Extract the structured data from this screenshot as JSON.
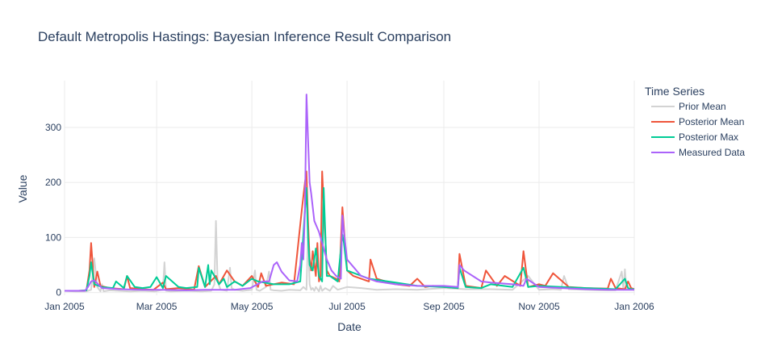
{
  "chart_data": {
    "type": "line",
    "title": "Default Metropolis Hastings: Bayesian Inference Result Comparison",
    "xlabel": "Date",
    "ylabel": "Value",
    "xlim": [
      "2005-01-01",
      "2006-01-01"
    ],
    "ylim": [
      -5,
      385
    ],
    "x_ticks": [
      "2005-01-01",
      "2005-03-01",
      "2005-05-01",
      "2005-07-01",
      "2005-09-01",
      "2005-11-01",
      "2006-01-01"
    ],
    "x_tick_labels": [
      "Jan 2005",
      "Mar 2005",
      "May 2005",
      "Jul 2005",
      "Sep 2005",
      "Nov 2005",
      "Jan 2006"
    ],
    "y_ticks": [
      0,
      100,
      200,
      300
    ],
    "y_tick_labels": [
      "0",
      "100",
      "200",
      "300"
    ],
    "grid": true,
    "legend": {
      "title": "Time Series",
      "placement": "right"
    },
    "series": [
      {
        "name": "Prior Mean",
        "color": "#d3d3d3",
        "x": [
          "2005-01-01",
          "2005-01-08",
          "2005-01-15",
          "2005-01-18",
          "2005-01-20",
          "2005-01-22",
          "2005-01-24",
          "2005-01-25",
          "2005-01-26",
          "2005-01-30",
          "2005-02-05",
          "2005-02-12",
          "2005-02-20",
          "2005-02-28",
          "2005-03-05",
          "2005-03-06",
          "2005-03-07",
          "2005-03-10",
          "2005-03-20",
          "2005-03-30",
          "2005-04-05",
          "2005-04-07",
          "2005-04-08",
          "2005-04-09",
          "2005-04-11",
          "2005-04-15",
          "2005-04-17",
          "2005-04-18",
          "2005-04-20",
          "2005-04-25",
          "2005-05-01",
          "2005-05-03",
          "2005-05-04",
          "2005-05-06",
          "2005-05-10",
          "2005-05-12",
          "2005-05-13",
          "2005-05-15",
          "2005-05-20",
          "2005-05-25",
          "2005-06-01",
          "2005-06-03",
          "2005-06-05",
          "2005-06-06",
          "2005-06-07",
          "2005-06-08",
          "2005-06-09",
          "2005-06-10",
          "2005-06-11",
          "2005-06-13",
          "2005-06-14",
          "2005-06-15",
          "2005-06-17",
          "2005-06-20",
          "2005-06-22",
          "2005-06-25",
          "2005-07-01",
          "2005-07-10",
          "2005-07-20",
          "2005-08-01",
          "2005-08-15",
          "2005-09-01",
          "2005-09-15",
          "2005-10-01",
          "2005-10-15",
          "2005-10-25",
          "2005-11-01",
          "2005-11-10",
          "2005-11-15",
          "2005-11-17",
          "2005-11-20",
          "2005-12-01",
          "2005-12-10",
          "2005-12-20",
          "2005-12-24",
          "2005-12-25",
          "2005-12-26",
          "2005-12-27",
          "2006-01-01"
        ],
        "y": [
          3,
          2,
          2,
          5,
          62,
          10,
          2,
          15,
          2,
          4,
          3,
          2,
          3,
          2,
          5,
          55,
          3,
          2,
          3,
          2,
          3,
          15,
          130,
          20,
          5,
          3,
          45,
          8,
          5,
          3,
          5,
          40,
          5,
          3,
          10,
          38,
          5,
          4,
          3,
          5,
          4,
          10,
          5,
          110,
          15,
          5,
          8,
          3,
          10,
          2,
          12,
          3,
          8,
          3,
          12,
          5,
          10,
          8,
          5,
          6,
          5,
          8,
          6,
          6,
          5,
          30,
          5,
          6,
          5,
          30,
          6,
          5,
          4,
          4,
          38,
          5,
          42,
          6,
          5
        ]
      },
      {
        "name": "Posterior Mean",
        "color": "#ef553b",
        "x": [
          "2005-01-01",
          "2005-01-10",
          "2005-01-15",
          "2005-01-17",
          "2005-01-18",
          "2005-01-20",
          "2005-01-22",
          "2005-01-24",
          "2005-01-30",
          "2005-02-08",
          "2005-02-10",
          "2005-02-12",
          "2005-02-20",
          "2005-02-27",
          "2005-03-05",
          "2005-03-07",
          "2005-03-15",
          "2005-03-25",
          "2005-03-28",
          "2005-04-01",
          "2005-04-08",
          "2005-04-10",
          "2005-04-15",
          "2005-04-20",
          "2005-04-25",
          "2005-05-01",
          "2005-05-05",
          "2005-05-07",
          "2005-05-10",
          "2005-05-20",
          "2005-05-28",
          "2005-06-02",
          "2005-06-04",
          "2005-06-05",
          "2005-06-06",
          "2005-06-07",
          "2005-06-08",
          "2005-06-09",
          "2005-06-11",
          "2005-06-12",
          "2005-06-13",
          "2005-06-14",
          "2005-06-15",
          "2005-06-18",
          "2005-06-20",
          "2005-06-24",
          "2005-06-26",
          "2005-06-28",
          "2005-07-01",
          "2005-07-05",
          "2005-07-15",
          "2005-07-16",
          "2005-07-20",
          "2005-08-01",
          "2005-08-10",
          "2005-08-15",
          "2005-08-20",
          "2005-08-25",
          "2005-09-01",
          "2005-09-10",
          "2005-09-11",
          "2005-09-15",
          "2005-09-25",
          "2005-09-28",
          "2005-10-05",
          "2005-10-10",
          "2005-10-20",
          "2005-10-22",
          "2005-10-25",
          "2005-11-01",
          "2005-11-05",
          "2005-11-10",
          "2005-11-20",
          "2005-12-01",
          "2005-12-15",
          "2005-12-17",
          "2005-12-20",
          "2005-12-26",
          "2005-12-28",
          "2005-12-30",
          "2006-01-01"
        ],
        "y": [
          3,
          3,
          4,
          40,
          90,
          10,
          38,
          12,
          8,
          6,
          30,
          8,
          6,
          5,
          18,
          6,
          8,
          5,
          48,
          10,
          30,
          15,
          40,
          20,
          12,
          30,
          10,
          35,
          12,
          18,
          15,
          150,
          200,
          220,
          130,
          60,
          40,
          75,
          30,
          90,
          20,
          30,
          220,
          40,
          30,
          25,
          20,
          155,
          40,
          30,
          20,
          60,
          25,
          15,
          12,
          25,
          10,
          12,
          10,
          8,
          70,
          12,
          8,
          40,
          12,
          30,
          12,
          75,
          10,
          15,
          12,
          35,
          10,
          8,
          7,
          25,
          8,
          6,
          20,
          8,
          6
        ]
      },
      {
        "name": "Posterior Max",
        "color": "#00cc96",
        "x": [
          "2005-01-01",
          "2005-01-10",
          "2005-01-15",
          "2005-01-17",
          "2005-01-18",
          "2005-01-20",
          "2005-01-25",
          "2005-02-01",
          "2005-02-03",
          "2005-02-08",
          "2005-02-10",
          "2005-02-15",
          "2005-02-20",
          "2005-02-25",
          "2005-03-01",
          "2005-03-05",
          "2005-03-07",
          "2005-03-15",
          "2005-03-20",
          "2005-03-27",
          "2005-03-28",
          "2005-04-01",
          "2005-04-03",
          "2005-04-04",
          "2005-04-05",
          "2005-04-10",
          "2005-04-13",
          "2005-04-15",
          "2005-04-20",
          "2005-04-25",
          "2005-05-01",
          "2005-05-05",
          "2005-05-15",
          "2005-05-25",
          "2005-06-01",
          "2005-06-04",
          "2005-06-05",
          "2005-06-06",
          "2005-06-07",
          "2005-06-09",
          "2005-06-11",
          "2005-06-13",
          "2005-06-15",
          "2005-06-16",
          "2005-06-18",
          "2005-06-20",
          "2005-06-25",
          "2005-06-28",
          "2005-06-29",
          "2005-07-01",
          "2005-07-15",
          "2005-08-01",
          "2005-08-15",
          "2005-09-01",
          "2005-09-10",
          "2005-09-11",
          "2005-09-15",
          "2005-09-25",
          "2005-10-01",
          "2005-10-15",
          "2005-10-22",
          "2005-10-25",
          "2005-11-01",
          "2005-11-15",
          "2005-12-01",
          "2005-12-20",
          "2005-12-26",
          "2005-12-28",
          "2005-12-30",
          "2006-01-01"
        ],
        "y": [
          3,
          3,
          4,
          30,
          55,
          15,
          10,
          8,
          20,
          8,
          30,
          10,
          8,
          10,
          28,
          8,
          30,
          10,
          8,
          10,
          45,
          10,
          50,
          15,
          40,
          15,
          25,
          10,
          20,
          12,
          25,
          20,
          15,
          15,
          20,
          150,
          190,
          100,
          50,
          40,
          80,
          30,
          20,
          190,
          30,
          30,
          20,
          105,
          90,
          40,
          25,
          18,
          12,
          10,
          8,
          45,
          10,
          8,
          15,
          10,
          45,
          10,
          12,
          10,
          8,
          6,
          25,
          8,
          6,
          6
        ]
      },
      {
        "name": "Measured Data",
        "color": "#ab63fa",
        "x": [
          "2005-01-01",
          "2005-01-14",
          "2005-01-16",
          "2005-01-18",
          "2005-01-20",
          "2005-01-25",
          "2005-02-05",
          "2005-02-20",
          "2005-03-05",
          "2005-03-20",
          "2005-04-01",
          "2005-04-10",
          "2005-04-20",
          "2005-04-30",
          "2005-05-08",
          "2005-05-12",
          "2005-05-15",
          "2005-05-17",
          "2005-05-20",
          "2005-05-25",
          "2005-05-30",
          "2005-06-01",
          "2005-06-02",
          "2005-06-03",
          "2005-06-04",
          "2005-06-05",
          "2005-06-06",
          "2005-06-07",
          "2005-06-08",
          "2005-06-10",
          "2005-06-13",
          "2005-06-15",
          "2005-06-18",
          "2005-06-21",
          "2005-06-24",
          "2005-06-27",
          "2005-06-28",
          "2005-06-29",
          "2005-07-01",
          "2005-07-10",
          "2005-07-20",
          "2005-08-01",
          "2005-08-15",
          "2005-09-01",
          "2005-09-10",
          "2005-09-11",
          "2005-09-14",
          "2005-09-25",
          "2005-10-01",
          "2005-10-15",
          "2005-10-22",
          "2005-10-24",
          "2005-11-01",
          "2005-11-15",
          "2005-12-01",
          "2005-12-15",
          "2006-01-01"
        ],
        "y": [
          3,
          3,
          10,
          20,
          22,
          8,
          6,
          5,
          5,
          4,
          5,
          5,
          5,
          8,
          20,
          20,
          50,
          55,
          38,
          22,
          20,
          50,
          90,
          60,
          150,
          360,
          280,
          200,
          180,
          130,
          110,
          90,
          60,
          40,
          30,
          25,
          140,
          110,
          60,
          30,
          20,
          15,
          12,
          12,
          10,
          50,
          40,
          20,
          18,
          15,
          12,
          25,
          10,
          8,
          6,
          5,
          5
        ]
      }
    ]
  }
}
